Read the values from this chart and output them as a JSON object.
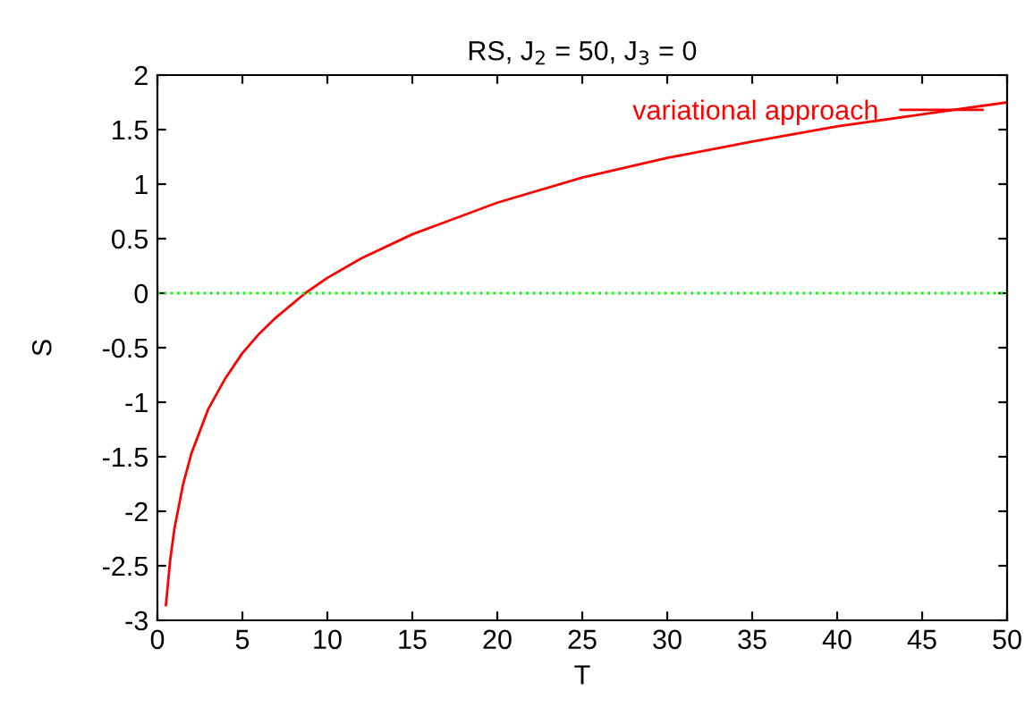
{
  "chart_data": {
    "type": "line",
    "title": "RS, J$_{2}$ = 50, J$_{3}$ = 0",
    "xlabel": "T",
    "ylabel": "S",
    "series": [
      {
        "name": "variational approach",
        "color": "#ff0000",
        "x": [
          0.5,
          0.75,
          1,
          1.5,
          2,
          3,
          4,
          5,
          6,
          7,
          8.7,
          10,
          12,
          15,
          20,
          25,
          30,
          35,
          40,
          45,
          50
        ],
        "values": [
          -2.86,
          -2.45,
          -2.16,
          -1.76,
          -1.47,
          -1.06,
          -0.78,
          -0.55,
          -0.37,
          -0.22,
          0,
          0.14,
          0.32,
          0.54,
          0.83,
          1.06,
          1.24,
          1.39,
          1.53,
          1.64,
          1.75
        ]
      }
    ],
    "ref_lines": [
      {
        "axis": "y",
        "value": 0,
        "color": "#00ff00",
        "line_style": "dotted"
      }
    ],
    "xlim": [
      0,
      50
    ],
    "xticks": [
      0,
      5,
      10,
      15,
      20,
      25,
      30,
      35,
      40,
      45,
      50
    ],
    "ylim": [
      -3,
      2
    ],
    "yticks": [
      -3,
      -2.5,
      -2,
      -1.5,
      -1,
      -0.5,
      0,
      0.5,
      1,
      1.5,
      2
    ],
    "grid": false,
    "legend": "top right",
    "marker": "none",
    "line_style": "solid"
  }
}
